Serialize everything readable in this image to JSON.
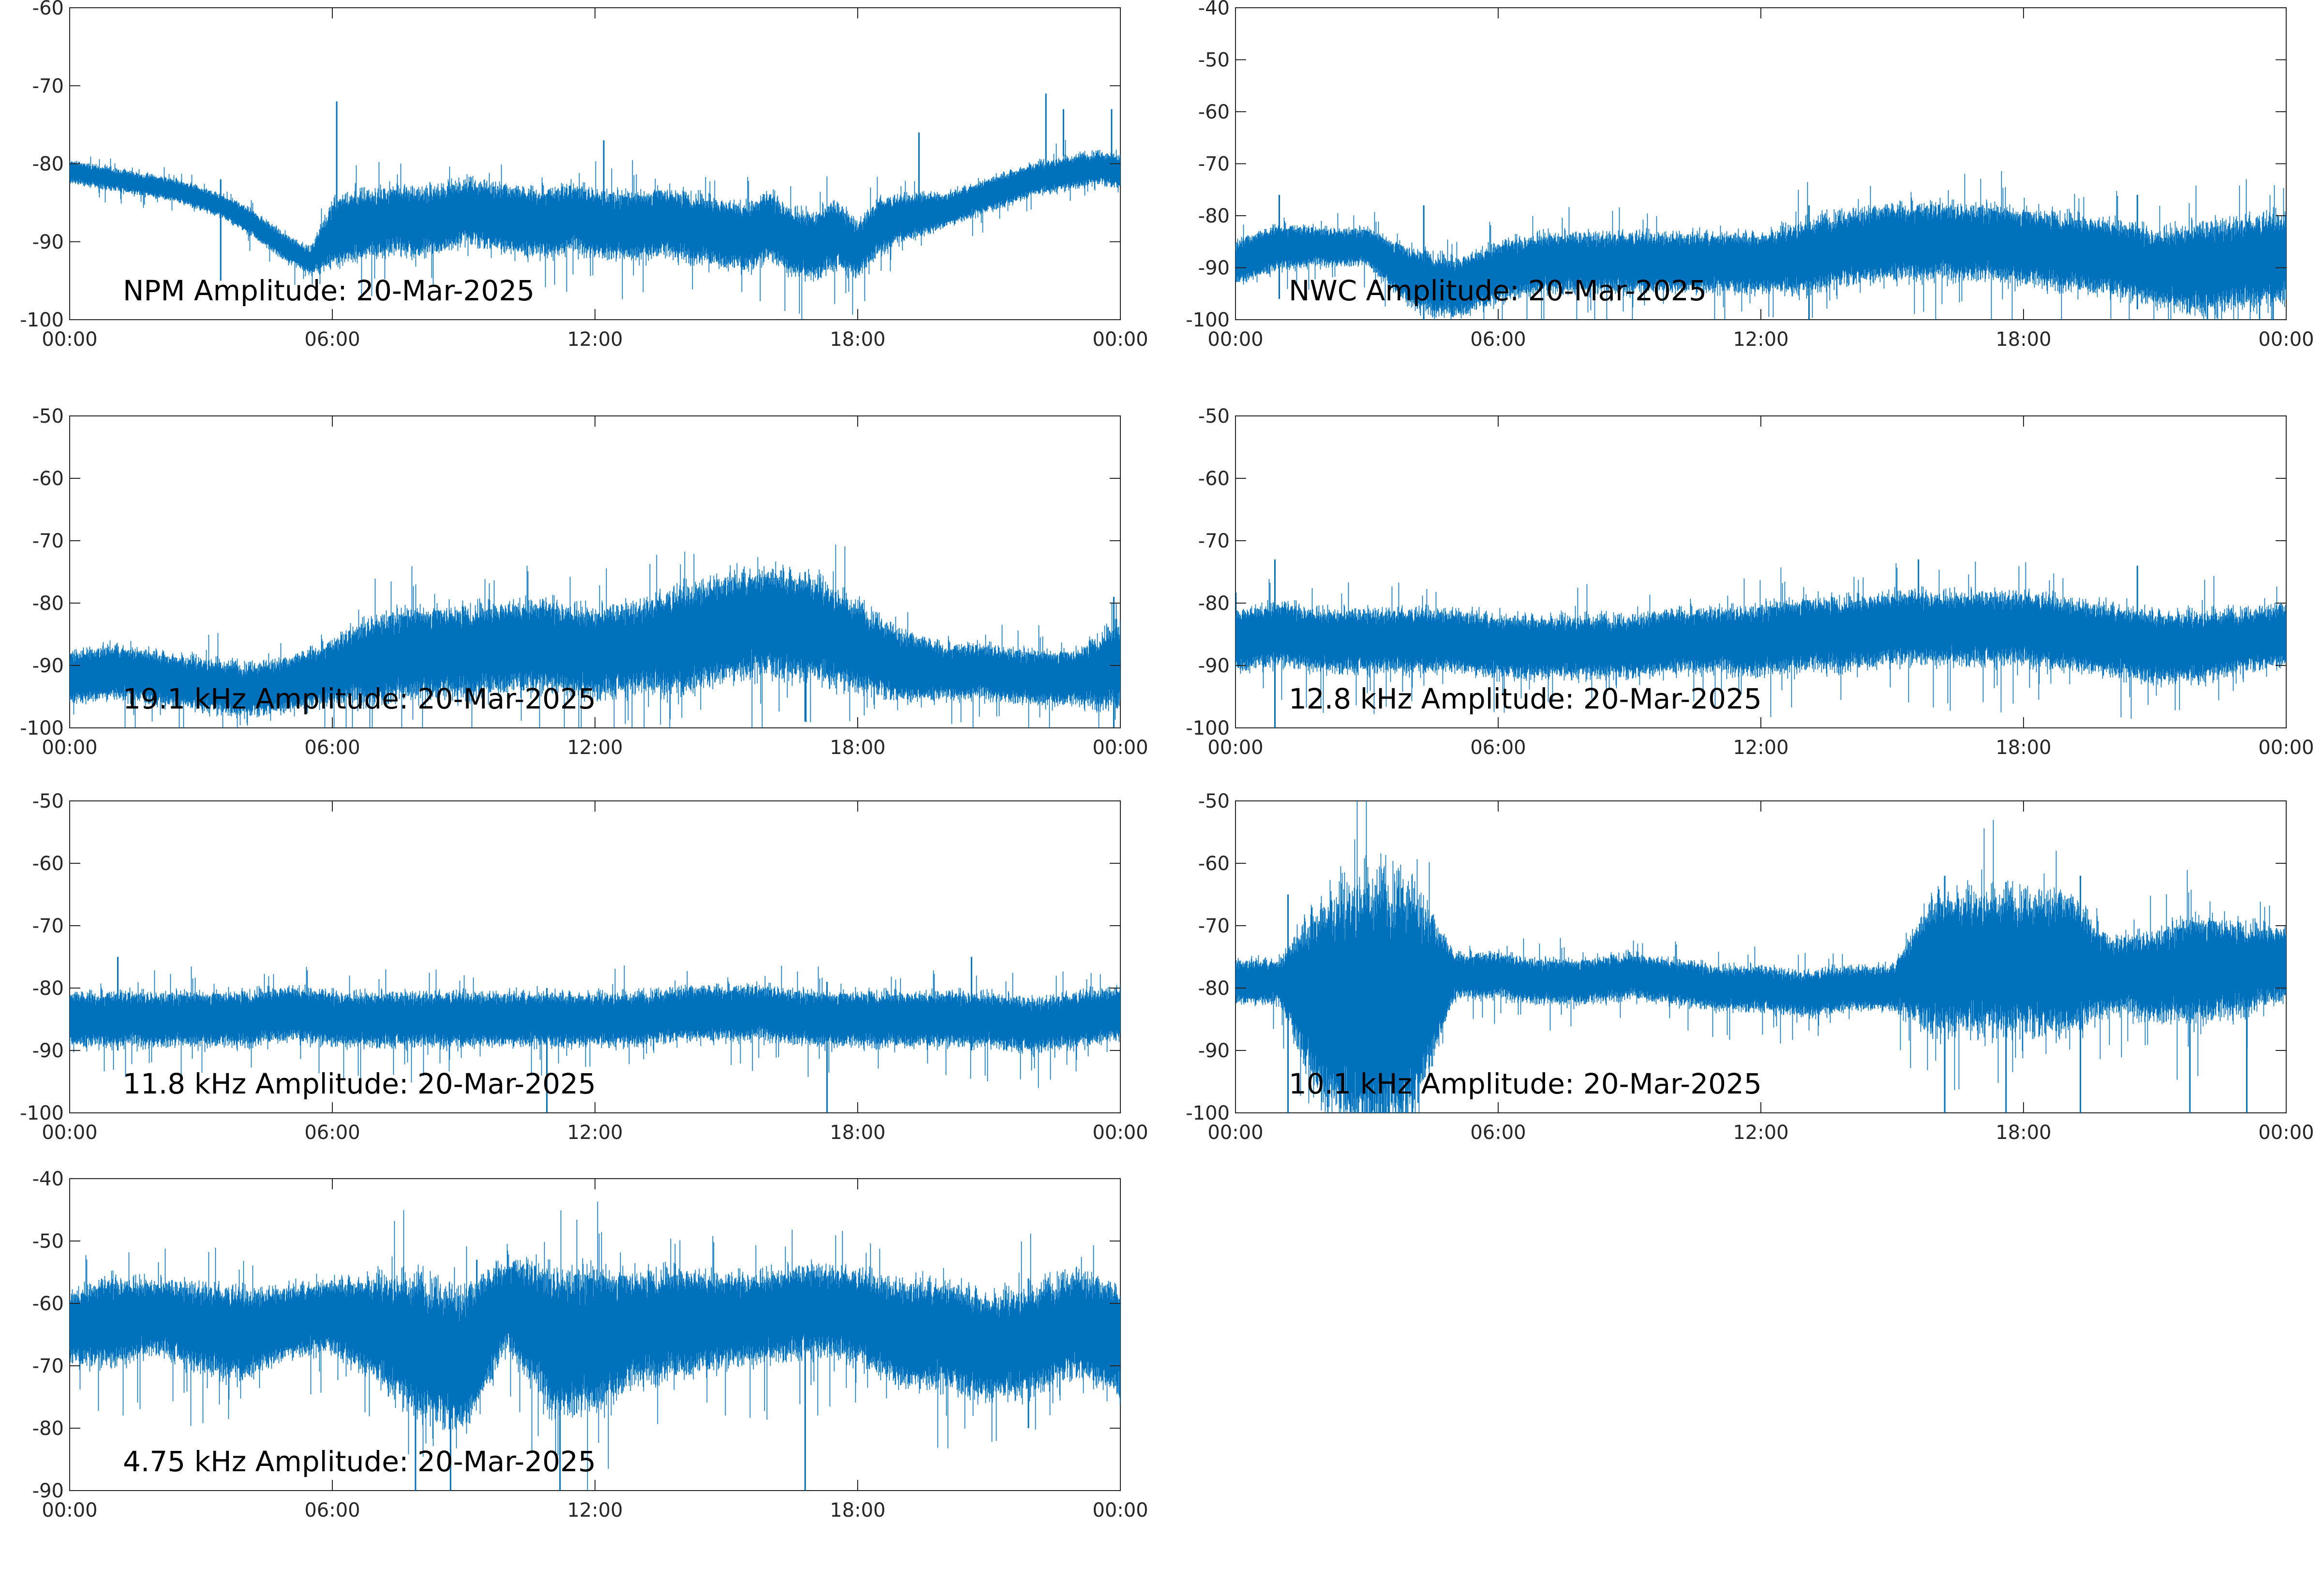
{
  "figure": {
    "background": "#ffffff",
    "series_color": "#0072bd",
    "axis_color": "#262626"
  },
  "chart_data": [
    {
      "type": "line",
      "annotation": "NPM Amplitude: 20-Mar-2025",
      "xlabel": "",
      "ylabel": "",
      "xticks": [
        "00:00",
        "06:00",
        "12:00",
        "18:00",
        "00:00"
      ],
      "yticks": [
        -60,
        -70,
        -80,
        -90,
        -100
      ],
      "ylim": [
        -100,
        -60
      ],
      "xlim_hours": [
        0,
        24
      ],
      "grid": false,
      "legend": "none",
      "x_hours": [
        0,
        0.5,
        1,
        1.5,
        2,
        2.5,
        3,
        3.5,
        4,
        4.5,
        5,
        5.5,
        6,
        6.5,
        7,
        7.5,
        8,
        8.5,
        9,
        9.5,
        10,
        10.5,
        11,
        11.5,
        12,
        12.5,
        13,
        13.5,
        14,
        14.5,
        15,
        15.5,
        16,
        16.5,
        17,
        17.5,
        18,
        18.5,
        19,
        19.5,
        20,
        20.5,
        21,
        21.5,
        22,
        22.5,
        23,
        23.5,
        24
      ],
      "center": [
        -81,
        -81.5,
        -82,
        -82.5,
        -83,
        -83.5,
        -84.5,
        -85.5,
        -87,
        -89,
        -91,
        -92.5,
        -89,
        -88,
        -87.5,
        -87,
        -87.5,
        -87,
        -86,
        -86.5,
        -87,
        -87.5,
        -87.5,
        -87,
        -87.5,
        -88,
        -88,
        -87.5,
        -88,
        -88.5,
        -89,
        -89.5,
        -88,
        -90,
        -90.5,
        -89,
        -91,
        -88,
        -87,
        -86.5,
        -86,
        -85,
        -84,
        -83,
        -82,
        -81.5,
        -81,
        -80.5,
        -81
      ],
      "spread": [
        1,
        1,
        1,
        1,
        1,
        1,
        1,
        1,
        1.2,
        1.2,
        1.2,
        1.2,
        3,
        3,
        3,
        3,
        3,
        3,
        3,
        3,
        3,
        3,
        3,
        3,
        3,
        3,
        3,
        3,
        3,
        3,
        3,
        3,
        3,
        3,
        3,
        3,
        2.5,
        2.5,
        2,
        2,
        1.5,
        1.5,
        1.5,
        1.5,
        1.5,
        1.5,
        1.5,
        1.5,
        1.5
      ],
      "spikes": [
        {
          "x_hours": 3.45,
          "y_low": -95,
          "y_high": -82
        },
        {
          "x_hours": 6.1,
          "y_low": -90,
          "y_high": -72
        },
        {
          "x_hours": 12.2,
          "y_low": -88,
          "y_high": -77
        },
        {
          "x_hours": 19.4,
          "y_low": -86,
          "y_high": -76
        },
        {
          "x_hours": 22.3,
          "y_low": -80,
          "y_high": -71
        },
        {
          "x_hours": 22.7,
          "y_low": -79,
          "y_high": -73
        },
        {
          "x_hours": 23.8,
          "y_low": -82,
          "y_high": -73
        }
      ]
    },
    {
      "type": "line",
      "annotation": "NWC Amplitude: 20-Mar-2025",
      "xlabel": "",
      "ylabel": "",
      "xticks": [
        "00:00",
        "06:00",
        "12:00",
        "18:00",
        "00:00"
      ],
      "yticks": [
        -40,
        -50,
        -60,
        -70,
        -80,
        -90,
        -100
      ],
      "ylim": [
        -100,
        -40
      ],
      "xlim_hours": [
        0,
        24
      ],
      "grid": false,
      "legend": "none",
      "x_hours": [
        0,
        1,
        2,
        3,
        4,
        5,
        6,
        7,
        8,
        9,
        10,
        11,
        12,
        13,
        14,
        15,
        16,
        17,
        18,
        19,
        20,
        21,
        22,
        23,
        24
      ],
      "center": [
        -89,
        -86,
        -86,
        -86,
        -92,
        -94,
        -91,
        -89,
        -89,
        -89,
        -89,
        -89,
        -89,
        -88,
        -86,
        -85,
        -85,
        -85,
        -86,
        -87,
        -88,
        -90,
        -90,
        -89,
        -88
      ],
      "spread": [
        3,
        3,
        2.5,
        2.5,
        4,
        4,
        4,
        4,
        4,
        4,
        4,
        4,
        4,
        5,
        5,
        5,
        5,
        5,
        5,
        5,
        5,
        5,
        6,
        6,
        6
      ],
      "spikes": [
        {
          "x_hours": 1.0,
          "y_low": -96,
          "y_high": -76
        },
        {
          "x_hours": 4.3,
          "y_low": -100,
          "y_high": -78
        },
        {
          "x_hours": 13.1,
          "y_low": -100,
          "y_high": -78
        },
        {
          "x_hours": 20.6,
          "y_low": -98,
          "y_high": -76
        },
        {
          "x_hours": 22.2,
          "y_low": -100,
          "y_high": -88
        },
        {
          "x_hours": 23.7,
          "y_low": -100,
          "y_high": -84
        }
      ]
    },
    {
      "type": "line",
      "annotation": "19.1 kHz Amplitude: 20-Mar-2025",
      "xlabel": "",
      "ylabel": "",
      "xticks": [
        "00:00",
        "06:00",
        "12:00",
        "18:00",
        "00:00"
      ],
      "yticks": [
        -50,
        -60,
        -70,
        -80,
        -90,
        -100
      ],
      "ylim": [
        -100,
        -50
      ],
      "xlim_hours": [
        0,
        24
      ],
      "grid": false,
      "legend": "none",
      "x_hours": [
        0,
        1,
        2,
        3,
        4,
        5,
        6,
        7,
        8,
        9,
        10,
        11,
        12,
        13,
        14,
        15,
        16,
        17,
        18,
        19,
        20,
        21,
        22,
        23,
        24
      ],
      "center": [
        -92,
        -91,
        -92,
        -93,
        -94,
        -93,
        -91,
        -89,
        -88,
        -88,
        -87,
        -87,
        -88,
        -87,
        -86,
        -84,
        -83,
        -84,
        -87,
        -90,
        -91,
        -91,
        -92,
        -92,
        -90
      ],
      "spread": [
        3,
        3,
        3,
        3,
        3,
        3,
        3.5,
        5,
        5,
        5,
        5,
        5,
        5,
        5,
        6,
        6,
        6,
        6,
        5,
        4,
        3,
        3,
        3,
        3,
        5
      ],
      "spikes": [
        {
          "x_hours": 23.85,
          "y_low": -100,
          "y_high": -79
        },
        {
          "x_hours": 16.8,
          "y_low": -99,
          "y_high": -75
        }
      ]
    },
    {
      "type": "line",
      "annotation": "12.8 kHz Amplitude: 20-Mar-2025",
      "xlabel": "",
      "ylabel": "",
      "xticks": [
        "00:00",
        "06:00",
        "12:00",
        "18:00",
        "00:00"
      ],
      "yticks": [
        -50,
        -60,
        -70,
        -80,
        -90,
        -100
      ],
      "ylim": [
        -100,
        -50
      ],
      "xlim_hours": [
        0,
        24
      ],
      "grid": false,
      "legend": "none",
      "x_hours": [
        0,
        1,
        2,
        3,
        4,
        5,
        6,
        7,
        8,
        9,
        10,
        11,
        12,
        13,
        14,
        15,
        16,
        17,
        18,
        19,
        20,
        21,
        22,
        23,
        24
      ],
      "center": [
        -86,
        -85,
        -86,
        -86,
        -86,
        -86,
        -87,
        -87,
        -87,
        -87,
        -86,
        -86,
        -86,
        -85,
        -85,
        -84,
        -84,
        -84,
        -84,
        -85,
        -86,
        -87,
        -87,
        -86,
        -85
      ],
      "spread": [
        3.5,
        3.5,
        3.5,
        3.5,
        3.5,
        3.5,
        3.5,
        3.5,
        3.5,
        3.5,
        3.5,
        3.5,
        4,
        4,
        4,
        4,
        4,
        4,
        4,
        4,
        4,
        4,
        4,
        3.5,
        3.5
      ],
      "spikes": [
        {
          "x_hours": 0.9,
          "y_low": -100,
          "y_high": -73
        },
        {
          "x_hours": 15.6,
          "y_low": -88,
          "y_high": -73
        },
        {
          "x_hours": 20.6,
          "y_low": -92,
          "y_high": -74
        }
      ]
    },
    {
      "type": "line",
      "annotation": "11.8 kHz Amplitude: 20-Mar-2025",
      "xlabel": "",
      "ylabel": "",
      "xticks": [
        "00:00",
        "06:00",
        "12:00",
        "18:00",
        "00:00"
      ],
      "yticks": [
        -50,
        -60,
        -70,
        -80,
        -90,
        -100
      ],
      "ylim": [
        -100,
        -50
      ],
      "xlim_hours": [
        0,
        24
      ],
      "grid": false,
      "legend": "none",
      "x_hours": [
        0,
        1,
        2,
        3,
        4,
        5,
        6,
        7,
        8,
        9,
        10,
        11,
        12,
        13,
        14,
        15,
        16,
        17,
        18,
        19,
        20,
        21,
        22,
        23,
        24
      ],
      "center": [
        -85,
        -85,
        -85,
        -85,
        -85,
        -84,
        -85,
        -85,
        -85,
        -85,
        -85,
        -85,
        -85,
        -85,
        -84,
        -84,
        -84,
        -85,
        -85,
        -85,
        -85,
        -85,
        -86,
        -85,
        -84
      ],
      "spread": [
        3,
        3,
        3,
        3,
        3,
        3,
        3,
        3,
        3,
        3,
        3,
        3,
        3,
        3,
        3,
        3,
        3,
        3,
        3,
        3,
        3,
        3,
        3,
        3,
        3
      ],
      "spikes": [
        {
          "x_hours": 1.1,
          "y_low": -90,
          "y_high": -75
        },
        {
          "x_hours": 10.9,
          "y_low": -100,
          "y_high": -80
        },
        {
          "x_hours": 17.3,
          "y_low": -100,
          "y_high": -79
        },
        {
          "x_hours": 20.6,
          "y_low": -90,
          "y_high": -75
        }
      ]
    },
    {
      "type": "line",
      "annotation": "10.1 kHz Amplitude: 20-Mar-2025",
      "xlabel": "",
      "ylabel": "",
      "xticks": [
        "00:00",
        "06:00",
        "12:00",
        "18:00",
        "00:00"
      ],
      "yticks": [
        -50,
        -60,
        -70,
        -80,
        -90,
        -100
      ],
      "ylim": [
        -100,
        -50
      ],
      "xlim_hours": [
        0,
        24
      ],
      "grid": false,
      "legend": "none",
      "x_hours": [
        0,
        1,
        2,
        3,
        4,
        5,
        6,
        7,
        8,
        9,
        10,
        11,
        12,
        13,
        14,
        15,
        16,
        17,
        18,
        19,
        20,
        21,
        22,
        23,
        24
      ],
      "center": [
        -79,
        -79,
        -82,
        -83,
        -82,
        -78,
        -78,
        -79,
        -79,
        -78,
        -79,
        -80,
        -80,
        -81,
        -80,
        -80,
        -76,
        -76,
        -76,
        -76,
        -78,
        -78,
        -77,
        -77,
        -76
      ],
      "spread": [
        2.5,
        2.5,
        12,
        15,
        14,
        2.5,
        2.5,
        2.5,
        2.5,
        2.5,
        2.5,
        2.5,
        2.5,
        2.5,
        2.5,
        2.5,
        8,
        8,
        8,
        8,
        4,
        5,
        6,
        5,
        4
      ],
      "spikes": [
        {
          "x_hours": 1.2,
          "y_low": -100,
          "y_high": -65
        },
        {
          "x_hours": 3.8,
          "y_low": -100,
          "y_high": -64
        },
        {
          "x_hours": 16.2,
          "y_low": -100,
          "y_high": -62
        },
        {
          "x_hours": 17.6,
          "y_low": -100,
          "y_high": -63
        },
        {
          "x_hours": 19.3,
          "y_low": -100,
          "y_high": -62
        },
        {
          "x_hours": 21.8,
          "y_low": -100,
          "y_high": -74
        },
        {
          "x_hours": 23.1,
          "y_low": -100,
          "y_high": -72
        }
      ]
    },
    {
      "type": "line",
      "annotation": "4.75 kHz Amplitude: 20-Mar-2025",
      "xlabel": "",
      "ylabel": "",
      "xticks": [
        "00:00",
        "06:00",
        "12:00",
        "18:00",
        "00:00"
      ],
      "yticks": [
        -40,
        -50,
        -60,
        -70,
        -80,
        -90
      ],
      "ylim": [
        -90,
        -40
      ],
      "xlim_hours": [
        0,
        24
      ],
      "grid": false,
      "legend": "none",
      "x_hours": [
        0,
        1,
        2,
        3,
        4,
        5,
        6,
        7,
        8,
        9,
        10,
        11,
        12,
        13,
        14,
        15,
        16,
        17,
        18,
        19,
        20,
        21,
        22,
        23,
        24
      ],
      "center": [
        -64,
        -63,
        -62,
        -64,
        -65,
        -63,
        -62,
        -64,
        -67,
        -69,
        -60,
        -66,
        -66,
        -64,
        -63,
        -63,
        -62,
        -61,
        -62,
        -65,
        -65,
        -67,
        -66,
        -63,
        -66
      ],
      "spread": [
        4,
        5,
        4,
        5,
        5,
        4,
        4,
        6,
        8,
        8,
        5,
        8,
        8,
        6,
        6,
        5,
        5,
        5,
        5,
        6,
        6,
        6,
        6,
        6,
        6
      ],
      "spikes": [
        {
          "x_hours": 7.9,
          "y_low": -90,
          "y_high": -62
        },
        {
          "x_hours": 8.7,
          "y_low": -90,
          "y_high": -62
        },
        {
          "x_hours": 9.3,
          "y_low": -75,
          "y_high": -53
        },
        {
          "x_hours": 11.2,
          "y_low": -90,
          "y_high": -66
        },
        {
          "x_hours": 16.8,
          "y_low": -90,
          "y_high": -62
        },
        {
          "x_hours": 21.9,
          "y_low": -80,
          "y_high": -56
        }
      ]
    }
  ]
}
